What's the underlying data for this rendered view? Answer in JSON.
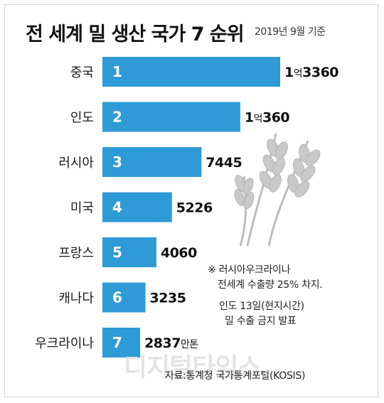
{
  "title": "전 세계 밀 생산 국가 7 순위",
  "date_note": "2019년 9월 기준",
  "chart_data": {
    "type": "bar",
    "orientation": "horizontal",
    "title": "전 세계 밀 생산 국가 7 순위",
    "unit": "만톤",
    "categories": [
      "중국",
      "인도",
      "러시아",
      "미국",
      "프랑스",
      "캐나다",
      "우크라이나"
    ],
    "ranks": [
      "1",
      "2",
      "3",
      "4",
      "5",
      "6",
      "7"
    ],
    "values": [
      13360,
      10360,
      7445,
      5226,
      4060,
      3235,
      2837
    ],
    "value_labels": [
      {
        "main": "1",
        "mid": "억",
        "rest": "3360",
        "suffix": ""
      },
      {
        "main": "1",
        "mid": "억",
        "rest": "360",
        "suffix": ""
      },
      {
        "main": "7445",
        "mid": "",
        "rest": "",
        "suffix": ""
      },
      {
        "main": "5226",
        "mid": "",
        "rest": "",
        "suffix": ""
      },
      {
        "main": "4060",
        "mid": "",
        "rest": "",
        "suffix": ""
      },
      {
        "main": "3235",
        "mid": "",
        "rest": "",
        "suffix": ""
      },
      {
        "main": "2837",
        "mid": "",
        "rest": "",
        "suffix": "만톤"
      }
    ],
    "bar_color": "#2e9bd6",
    "grid": false,
    "legend": "none"
  },
  "note": {
    "line1": "※ 러시아우크라이나",
    "line2": "전세계 수출량 25% 차지.",
    "line3": "인도 13일(현지시간)",
    "line4": "밀 수출 금지 발표"
  },
  "watermark": "디지털타임스",
  "source": "자료:통계청 국가통계포털(KOSIS)",
  "illustration_icon": "wheat-icon"
}
